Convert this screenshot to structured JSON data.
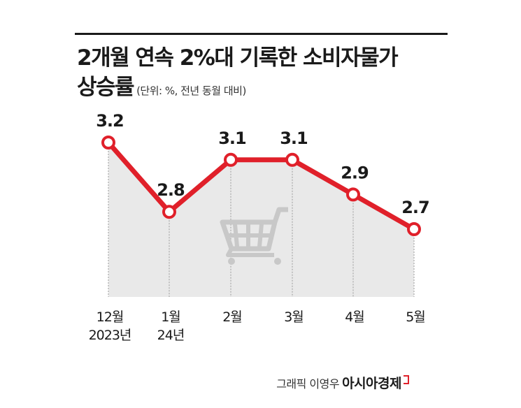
{
  "title": {
    "line1": "2개월 연속 2%대 기록한 소비자물가",
    "line2": "상승률",
    "unit": "(단위: %, 전년 동월 대비)"
  },
  "credit": {
    "prefix": "그래픽 이영우",
    "brand": "아시아경제"
  },
  "colors": {
    "line": "#e0202a",
    "area": "#e9e9e9",
    "cart": "#c8c8c8",
    "text": "#1a1a1a"
  },
  "icon": "shopping-cart-icon",
  "chart_data": {
    "type": "line",
    "categories": [
      [
        "12월",
        "2023년"
      ],
      [
        "1월",
        "24년"
      ],
      [
        "2월"
      ],
      [
        "3월"
      ],
      [
        "4월"
      ],
      [
        "5월"
      ]
    ],
    "values": [
      3.2,
      2.8,
      3.1,
      3.1,
      2.9,
      2.7
    ],
    "labels": [
      "3.2",
      "2.8",
      "3.1",
      "3.1",
      "2.9",
      "2.7"
    ],
    "ylim": [
      2.0,
      3.4
    ],
    "grid": false
  }
}
